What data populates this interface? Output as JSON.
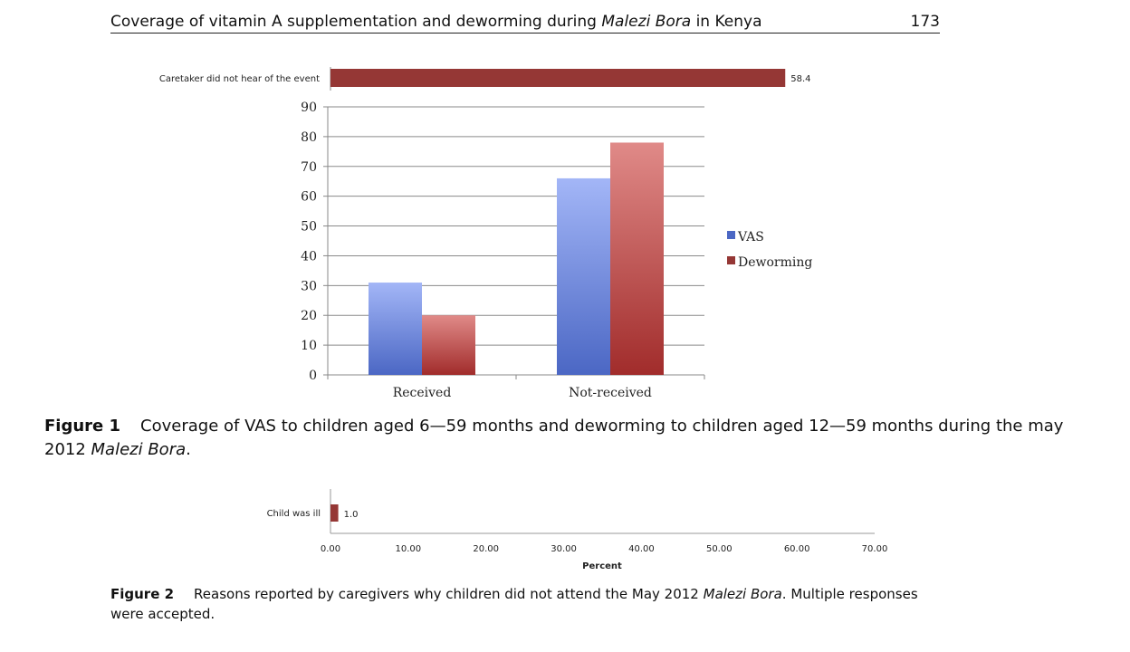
{
  "header": {
    "title_plain": "Coverage of vitamin A supplementation and deworming during ",
    "title_italic": "Malezi Bora",
    "title_end": " in Kenya",
    "page_number": "173"
  },
  "colors": {
    "vas": "#6f8ee0",
    "deworming": "#b3413f",
    "dark_red": "#953735"
  },
  "chart_data": [
    {
      "type": "bar",
      "orientation": "horizontal",
      "categories": [
        "Caretaker did not hear of the event"
      ],
      "values": [
        58.4
      ],
      "data_labels": [
        "58.4"
      ]
    },
    {
      "type": "bar",
      "categories": [
        "Received",
        "Not-received"
      ],
      "series": [
        {
          "name": "VAS",
          "values": [
            31,
            66
          ]
        },
        {
          "name": "Deworming",
          "values": [
            20,
            78
          ]
        }
      ],
      "ylim": [
        0,
        90
      ],
      "yticks": [
        "0",
        "10",
        "20",
        "30",
        "40",
        "50",
        "60",
        "70",
        "80",
        "90"
      ],
      "legend": "right"
    },
    {
      "type": "bar",
      "orientation": "horizontal",
      "categories": [
        "Child was ill"
      ],
      "values": [
        1.0
      ],
      "data_labels": [
        "1.0"
      ],
      "xlim": [
        0,
        70
      ],
      "xticks": [
        "0.00",
        "10.00",
        "20.00",
        "30.00",
        "40.00",
        "50.00",
        "60.00",
        "70.00"
      ],
      "xlabel": "Percent"
    }
  ],
  "figure1": {
    "label": "Figure 1",
    "text_a": "Coverage of VAS to children aged 6—59 months and deworming to children aged 12—59 months during the may 2012 ",
    "italic": "Malezi Bora",
    "text_b": "."
  },
  "figure2": {
    "label": "Figure 2",
    "text_a": "Reasons reported by caregivers why children did not attend the May 2012 ",
    "italic": "Malezi Bora",
    "text_b": ". Multiple responses were accepted."
  }
}
